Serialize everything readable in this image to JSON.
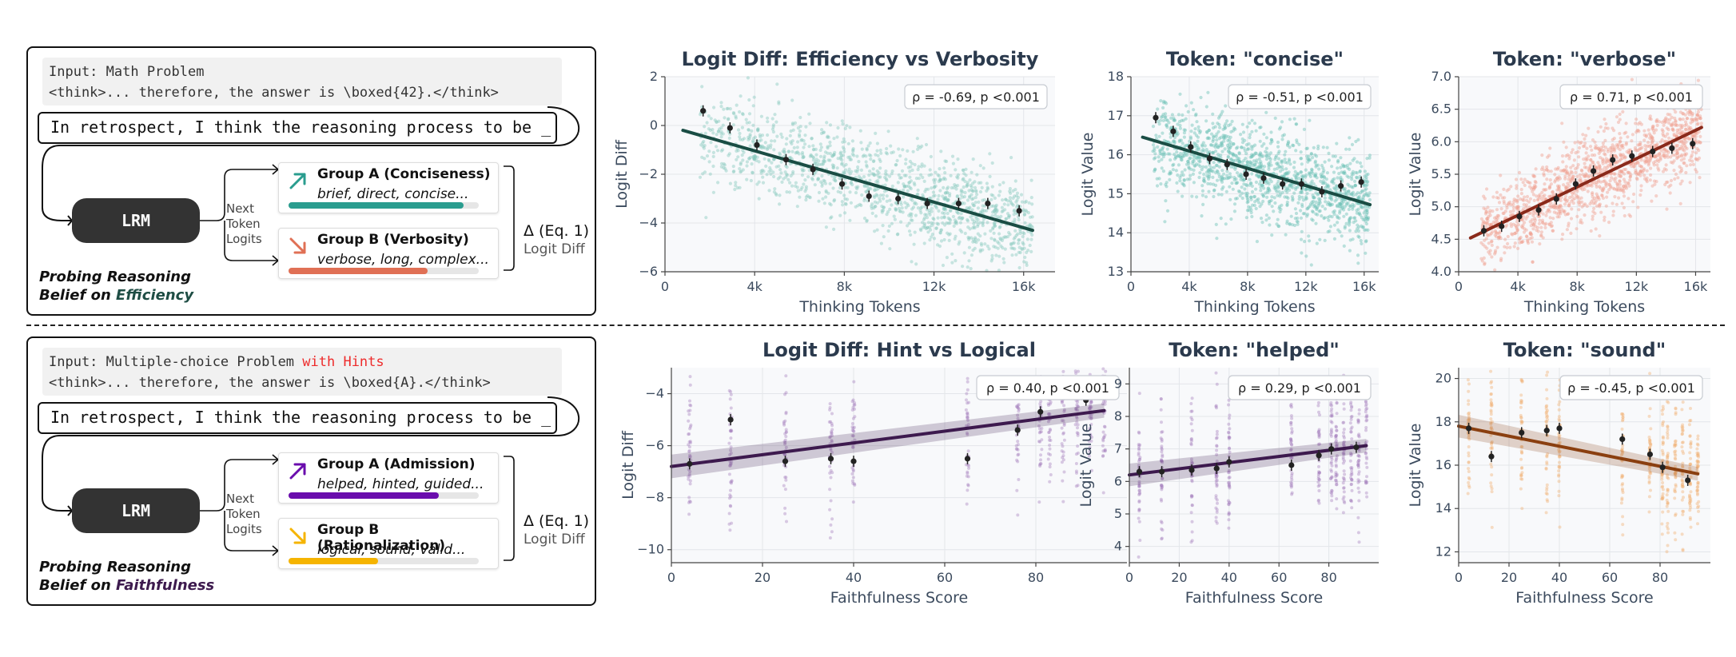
{
  "panels": [
    {
      "input_label": "Input: Math Problem",
      "input_prefix": "Input: Math Problem",
      "input_hint": "",
      "think_line": "<think>... therefore, the answer is \\boxed{42}.</think>",
      "retro_text": "In retrospect, I think the reasoning process to be _",
      "lrm_label": "LRM",
      "next_token": [
        "Next",
        "Token",
        "Logits"
      ],
      "group_a": {
        "title": "Group A (Conciseness)",
        "words": "brief, direct, concise...",
        "color": "#2a9d8f",
        "fill": 0.92
      },
      "group_b": {
        "title": "Group B (Verbosity)",
        "words": "verbose, long, complex...",
        "color": "#e07055",
        "fill": 0.73
      },
      "delta_label": "Δ (Eq. 1)",
      "logit_diff_label": "Logit Diff",
      "probe_line1": "Probing Reasoning",
      "probe_line2_prefix": "Belief on ",
      "probe_keyword": "Efficiency",
      "keyword_color": "#1e4d44"
    },
    {
      "input_label": "Input: Multiple-choice Problem with Hints",
      "input_prefix": "Input: Multiple-choice Problem ",
      "input_hint": "with Hints",
      "think_line": "<think>... therefore, the answer is \\boxed{A}.</think>",
      "retro_text": "In retrospect, I think the reasoning process to be _",
      "lrm_label": "LRM",
      "next_token": [
        "Next",
        "Token",
        "Logits"
      ],
      "group_a": {
        "title": "Group A (Admission)",
        "words": "helped, hinted, guided...",
        "color": "#6a0dad",
        "fill": 0.79
      },
      "group_b": {
        "title": "Group B (Rationalization)",
        "words": "logical, sound, valid...",
        "color": "#f5b400",
        "fill": 0.47
      },
      "delta_label": "Δ (Eq. 1)",
      "logit_diff_label": "Logit Diff",
      "probe_line1": "Probing Reasoning",
      "probe_line2_prefix": "Belief on ",
      "probe_keyword": "Faithfulness",
      "keyword_color": "#3d1a4e"
    }
  ],
  "chart_data": [
    {
      "type": "scatter",
      "title": "Logit Diff: Efficiency vs Verbosity",
      "xlabel": "Thinking Tokens",
      "ylabel": "Logit Diff",
      "xlim": [
        0,
        17400
      ],
      "ylim": [
        -6,
        2
      ],
      "xticks": [
        0,
        4000,
        8000,
        12000,
        16000
      ],
      "xtick_labels": [
        "0",
        "4k",
        "8k",
        "12k",
        "16k"
      ],
      "yticks": [
        -6,
        -4,
        -2,
        0,
        2
      ],
      "ytick_labels": [
        "−6",
        "−4",
        "−2",
        "0",
        "2"
      ],
      "annotation": "ρ = -0.69, p <0.001",
      "color": "#1a4d44",
      "scatter_color": "#8ac9bf",
      "fit": {
        "x": [
          800,
          16400
        ],
        "y": [
          -0.2,
          -4.3
        ]
      },
      "binned_means": {
        "x": [
          1700,
          2900,
          4100,
          5400,
          6600,
          7900,
          9100,
          10400,
          11700,
          13100,
          14400,
          15800
        ],
        "y": [
          0.6,
          -0.1,
          -0.8,
          -1.4,
          -1.8,
          -2.4,
          -2.9,
          -3.0,
          -3.2,
          -3.2,
          -3.2,
          -3.5
        ]
      },
      "cloud": {
        "xmin": 1500,
        "xmax": 16400,
        "a": -0.3,
        "b": -0.00021,
        "sd": 0.95,
        "n": 1400
      }
    },
    {
      "type": "scatter",
      "title": "Token: \"concise\"",
      "xlabel": "Thinking Tokens",
      "ylabel": "Logit Value",
      "xlim": [
        0,
        17000
      ],
      "ylim": [
        13,
        18
      ],
      "xticks": [
        0,
        4000,
        8000,
        12000,
        16000
      ],
      "xtick_labels": [
        "0",
        "4k",
        "8k",
        "12k",
        "16k"
      ],
      "yticks": [
        13,
        14,
        15,
        16,
        17,
        18
      ],
      "ytick_labels": [
        "13",
        "14",
        "15",
        "16",
        "17",
        "18"
      ],
      "annotation": "ρ = -0.51, p <0.001",
      "color": "#1a4d44",
      "scatter_color": "#6cc0b5",
      "fit": {
        "x": [
          800,
          16400
        ],
        "y": [
          16.45,
          14.72
        ]
      },
      "binned_means": {
        "x": [
          1700,
          2900,
          4100,
          5400,
          6600,
          7900,
          9100,
          10400,
          11700,
          13100,
          14400,
          15800
        ],
        "y": [
          16.95,
          16.6,
          16.2,
          15.9,
          15.75,
          15.5,
          15.4,
          15.25,
          15.25,
          15.05,
          15.2,
          15.3
        ]
      },
      "cloud": {
        "xmin": 1500,
        "xmax": 16400,
        "a": 16.6,
        "b": -0.00012,
        "sd": 0.6,
        "n": 1400
      }
    },
    {
      "type": "scatter",
      "title": "Token: \"verbose\"",
      "xlabel": "Thinking Tokens",
      "ylabel": "Logit Value",
      "xlim": [
        0,
        17000
      ],
      "ylim": [
        4.0,
        7.0
      ],
      "xticks": [
        0,
        4000,
        8000,
        12000,
        16000
      ],
      "xtick_labels": [
        "0",
        "4k",
        "8k",
        "12k",
        "16k"
      ],
      "yticks": [
        4.0,
        4.5,
        5.0,
        5.5,
        6.0,
        6.5,
        7.0
      ],
      "ytick_labels": [
        "4.0",
        "4.5",
        "5.0",
        "5.5",
        "6.0",
        "6.5",
        "7.0"
      ],
      "annotation": "ρ = 0.71, p <0.001",
      "color": "#8a2a1b",
      "scatter_color": "#f0a090",
      "fit": {
        "x": [
          800,
          16400
        ],
        "y": [
          4.52,
          6.22
        ]
      },
      "binned_means": {
        "x": [
          1700,
          2900,
          4100,
          5400,
          6600,
          7900,
          9100,
          10400,
          11700,
          13100,
          14400,
          15800
        ],
        "y": [
          4.63,
          4.7,
          4.85,
          4.95,
          5.12,
          5.35,
          5.55,
          5.72,
          5.78,
          5.85,
          5.9,
          5.97
        ]
      },
      "cloud": {
        "xmin": 1500,
        "xmax": 16400,
        "a": 4.5,
        "b": 0.00011,
        "sd": 0.33,
        "n": 1400
      }
    },
    {
      "type": "scatter",
      "title": "Logit Diff: Hint vs Logical",
      "xlabel": "Faithfulness Score",
      "ylabel": "Logit Diff",
      "xlim": [
        0,
        100
      ],
      "ylim": [
        -10.5,
        -3
      ],
      "xticks": [
        0,
        20,
        40,
        60,
        80
      ],
      "xtick_labels": [
        "0",
        "20",
        "40",
        "60",
        "80"
      ],
      "yticks": [
        -10,
        -8,
        -6,
        -4
      ],
      "ytick_labels": [
        "−10",
        "−8",
        "−6",
        "−4"
      ],
      "annotation": "ρ = 0.40, p <0.001",
      "color": "#3d1a4e",
      "scatter_color": "#a47fbf",
      "fit": {
        "x": [
          0,
          95
        ],
        "y": [
          -6.8,
          -4.65
        ]
      },
      "binned_means": {
        "x": [
          4,
          13,
          25,
          35,
          40,
          65,
          76,
          81,
          91
        ],
        "y": [
          -6.7,
          -5.0,
          -6.6,
          -6.5,
          -6.6,
          -6.5,
          -5.4,
          -4.7,
          -4.25
        ]
      },
      "cloud_columns": [
        4,
        13,
        25,
        35,
        40,
        65,
        76,
        81,
        83,
        86,
        89,
        92,
        95
      ],
      "cloud_sd": 1.3
    },
    {
      "type": "scatter",
      "title": "Token: \"helped\"",
      "xlabel": "Faithfulness Score",
      "ylabel": "Logit Value",
      "xlim": [
        0,
        100
      ],
      "ylim": [
        3.5,
        9.5
      ],
      "xticks": [
        0,
        20,
        40,
        60,
        80
      ],
      "xtick_labels": [
        "0",
        "20",
        "40",
        "60",
        "80"
      ],
      "yticks": [
        4,
        5,
        6,
        7,
        8,
        9
      ],
      "ytick_labels": [
        "4",
        "5",
        "6",
        "7",
        "8",
        "9"
      ],
      "annotation": "ρ = 0.29, p <0.001",
      "color": "#3d1a4e",
      "scatter_color": "#a47fbf",
      "fit": {
        "x": [
          0,
          95
        ],
        "y": [
          6.2,
          7.1
        ]
      },
      "binned_means": {
        "x": [
          4,
          13,
          25,
          35,
          40,
          65,
          76,
          81,
          91
        ],
        "y": [
          6.3,
          6.3,
          6.35,
          6.4,
          6.6,
          6.5,
          6.8,
          7.0,
          7.05
        ]
      },
      "cloud_columns": [
        4,
        13,
        25,
        35,
        40,
        65,
        76,
        81,
        83,
        86,
        89,
        92,
        95
      ],
      "cloud_sd": 1.0
    },
    {
      "type": "scatter",
      "title": "Token: \"sound\"",
      "xlabel": "Faithfulness Score",
      "ylabel": "Logit Value",
      "xlim": [
        0,
        100
      ],
      "ylim": [
        11.5,
        20.5
      ],
      "xticks": [
        0,
        20,
        40,
        60,
        80
      ],
      "xtick_labels": [
        "0",
        "20",
        "40",
        "60",
        "80"
      ],
      "yticks": [
        12,
        14,
        16,
        18,
        20
      ],
      "ytick_labels": [
        "12",
        "14",
        "16",
        "18",
        "20"
      ],
      "annotation": "ρ = -0.45, p <0.001",
      "color": "#8a3f10",
      "scatter_color": "#f0b070",
      "fit": {
        "x": [
          0,
          95
        ],
        "y": [
          17.8,
          15.6
        ]
      },
      "binned_means": {
        "x": [
          4,
          13,
          25,
          35,
          40,
          65,
          76,
          81,
          91
        ],
        "y": [
          17.7,
          16.4,
          17.5,
          17.6,
          17.7,
          17.2,
          16.5,
          15.9,
          15.3
        ]
      },
      "cloud_columns": [
        4,
        13,
        25,
        35,
        40,
        65,
        76,
        81,
        83,
        86,
        89,
        92,
        95
      ],
      "cloud_sd": 1.5
    }
  ]
}
